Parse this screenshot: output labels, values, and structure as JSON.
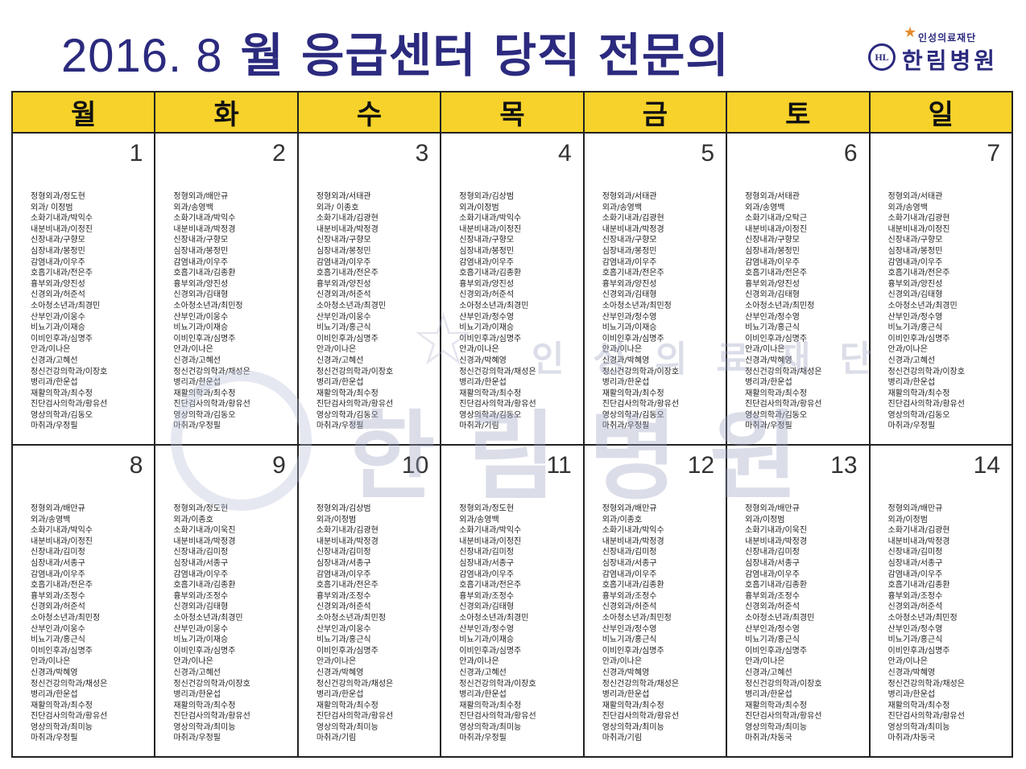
{
  "header": {
    "title_year_month": "2016.  8",
    "title_rest": "월 응급센터 당직 전문의",
    "logo": {
      "foundation": "인성의료재단",
      "hospital": "한림병원",
      "seal_text": "HL",
      "seal_watermark": "HALLYM MEDICAL FOUNDATION 1991 한림병원"
    }
  },
  "colors": {
    "title": "#2b2a7e",
    "header_bg": "#f6d22a"
  },
  "weekdays": [
    "월",
    "화",
    "수",
    "목",
    "금",
    "토",
    "일"
  ],
  "departments": [
    "정형외과",
    "외과",
    "소화기내과",
    "내분비내과",
    "신장내과",
    "심장내과",
    "감염내과",
    "호흡기내과",
    "흉부외과",
    "신경외과",
    "소아청소년과",
    "산부인과",
    "비뇨기과",
    "이비인후과",
    "안과",
    "신경과",
    "정신건강의학과",
    "병리과",
    "재활의학과",
    "진단검사의학과",
    "영상의학과",
    "마취과"
  ],
  "days": [
    {
      "date": "1",
      "doctors": [
        "정도현",
        " 이정범",
        "박익수",
        "이정진",
        "구향모",
        "봉정민",
        "이우주",
        "전은주",
        "양진성",
        "허준석",
        "최경민",
        "이웅수",
        "이재승",
        "심명주",
        "이나은",
        "고혜선",
        "이장호",
        "한운섭",
        "최수정",
        "황유선",
        "김동오",
        "우정필"
      ]
    },
    {
      "date": "2",
      "doctors": [
        "배만규",
        "송영백",
        "박익수",
        "박정경",
        "구향모",
        "봉정민",
        "이우주",
        "김종환",
        "양진성",
        "김태형",
        "최민정",
        "이웅수",
        "이재승",
        "심명주",
        "이나은",
        "고혜선",
        "채성은",
        "한운섭",
        "최수정",
        "황유선",
        "김동오",
        "우정필"
      ]
    },
    {
      "date": "3",
      "doctors": [
        "서태관",
        " 이종호",
        "김광현",
        "박정경",
        "구향모",
        "봉정민",
        "이우주",
        "전은주",
        "양진성",
        "허준석",
        "최경민",
        "이웅수",
        "홍근식",
        "심명주",
        "이나은",
        "고혜선",
        "이장호",
        "한운섭",
        "최수정",
        "황유선",
        "김동오",
        "우정필"
      ]
    },
    {
      "date": "4",
      "doctors": [
        "김상범",
        "이정범",
        "박익수",
        "이정진",
        "구향모",
        "봉정민",
        "이우주",
        "김종환",
        "양진성",
        "허준석",
        "최경민",
        "정수영",
        "이재승",
        "심명주",
        "이나은",
        "박혜영",
        "채성은",
        "한운섭",
        "최수정",
        "황유선",
        "김동오",
        "기림"
      ]
    },
    {
      "date": "5",
      "doctors": [
        "서태관",
        "송영백",
        "김광현",
        "박정경",
        "구향모",
        "봉정민",
        "이우주",
        "전은주",
        "양진성",
        "김태형",
        "최민정",
        "정수영",
        "이재승",
        "심명주",
        "이나은",
        "박혜영",
        "이장호",
        "한운섭",
        "최수정",
        "황유선",
        "김동오",
        "우정필"
      ]
    },
    {
      "date": "6",
      "doctors": [
        "서태관",
        "송영백",
        "오탁근",
        "이정진",
        "구향모",
        "봉정민",
        "이우주",
        "전은주",
        "양진성",
        "김태형",
        "최민정",
        "정수영",
        "홍근식",
        "심명주",
        "이나은",
        "박혜영",
        "채성은",
        "한운섭",
        "최수정",
        "황유선",
        "김동오",
        "우정필"
      ]
    },
    {
      "date": "7",
      "doctors": [
        "서태관",
        "송영백",
        "김광현",
        "이정진",
        "구향모",
        "봉정민",
        "이우주",
        "전은주",
        "양진성",
        "김태형",
        "최경민",
        "정수영",
        "홍근식",
        "심명주",
        "이나은",
        "고혜선",
        "이장호",
        "한운섭",
        "최수정",
        "황유선",
        "김동오",
        "우정필"
      ]
    },
    {
      "date": "8",
      "doctors": [
        "배만규",
        "송영백",
        "박익수",
        "이정진",
        "김미정",
        "서종구",
        "이우주",
        "전은주",
        "조정수",
        "허준석",
        "최민정",
        "이웅수",
        "홍근식",
        "심명주",
        "이나은",
        "박혜영",
        "채성은",
        "한운섭",
        "최수정",
        "황유선",
        "최미능",
        "우정필"
      ]
    },
    {
      "date": "9",
      "doctors": [
        "정도현",
        "이종호",
        "이욱진",
        "박정경",
        "김미정",
        "서종구",
        "이우주",
        "김종환",
        "조정수",
        "김태형",
        "최경민",
        "이웅수",
        "이재승",
        "심명주",
        "이나은",
        "고혜선",
        "이장호",
        "한운섭",
        "최수정",
        "황유선",
        "최미능",
        "우정필"
      ]
    },
    {
      "date": "10",
      "doctors": [
        "김상범",
        "이정범",
        "김광현",
        "박정경",
        "김미정",
        "서종구",
        "이우주",
        "전은주",
        "조정수",
        "허준석",
        "최민정",
        "이웅수",
        "홍근식",
        "심명주",
        "이나은",
        "박혜영",
        "채성은",
        "한운섭",
        "최수정",
        "황유선",
        "최미능",
        "기림"
      ]
    },
    {
      "date": "11",
      "doctors": [
        "정도현",
        "송영백",
        "박익수",
        "이정진",
        "김미정",
        "서종구",
        "이우주",
        "전은주",
        "조정수",
        "김태형",
        "최경민",
        "정수영",
        "이재승",
        "심명주",
        "이나은",
        "고혜선",
        "이장호",
        "한운섭",
        "최수정",
        "황유선",
        "최미능",
        "우정필"
      ]
    },
    {
      "date": "12",
      "doctors": [
        "배만규",
        "이종호",
        "박익수",
        "박정경",
        "김미정",
        "서종구",
        "이우주",
        "김종환",
        "조정수",
        "허준석",
        "최민정",
        "정수영",
        "홍근식",
        "심명주",
        "이나은",
        "박혜영",
        "채성은",
        "한운섭",
        "최수정",
        "황유선",
        "최미능",
        "기림"
      ]
    },
    {
      "date": "13",
      "doctors": [
        "배만규",
        "이정범",
        "이욱진",
        "박정경",
        "김미정",
        "서종구",
        "이우주",
        "김종환",
        "조정수",
        "허준석",
        "최경민",
        "정수영",
        "홍근식",
        "심명주",
        "이나은",
        "고혜선",
        "이장호",
        "한운섭",
        "최수정",
        "황유선",
        "최미능",
        "차동국"
      ]
    },
    {
      "date": "14",
      "doctors": [
        "배만규",
        "이정범",
        "김광현",
        "박정경",
        "김미정",
        "서종구",
        "이우주",
        "김종환",
        "조정수",
        "허준석",
        "최민정",
        "정수영",
        "홍근식",
        "심명주",
        "이나은",
        "박혜영",
        "채성은",
        "한운섭",
        "최수정",
        "황유선",
        "최미능",
        "차동국"
      ]
    }
  ]
}
